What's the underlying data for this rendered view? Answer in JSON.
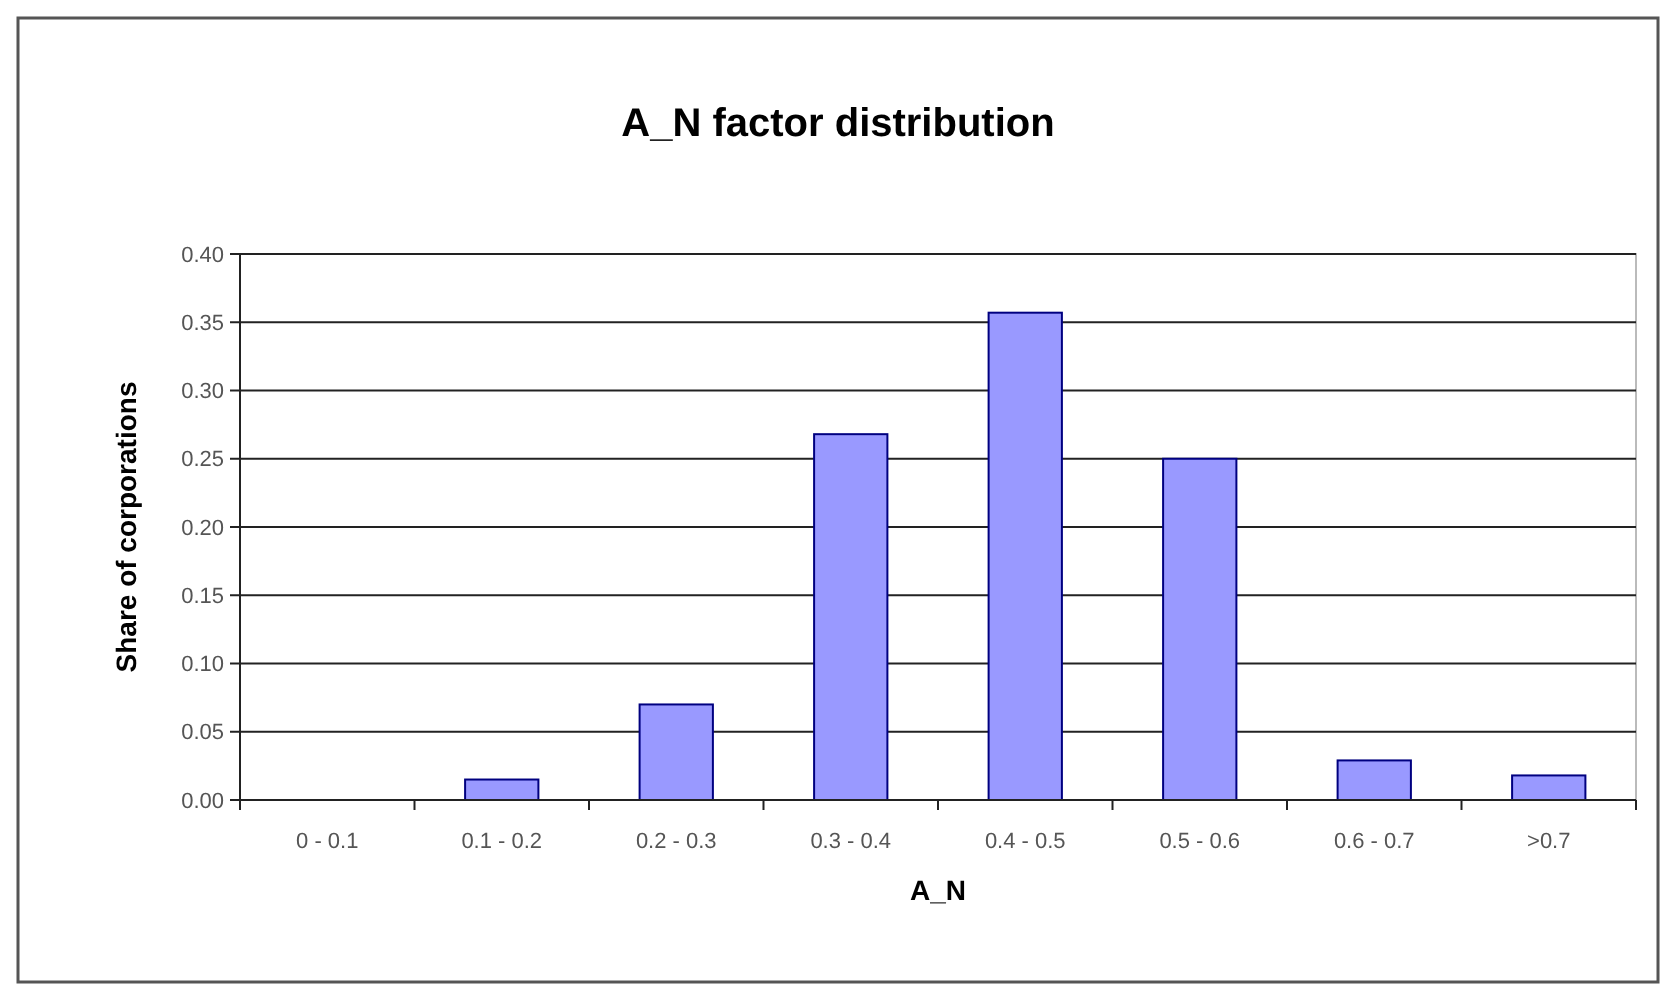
{
  "chart_data": {
    "type": "bar",
    "title": "A_N factor distribution",
    "xlabel": "A_N",
    "ylabel": "Share of corporations",
    "categories": [
      "0 - 0.1",
      "0.1 - 0.2",
      "0.2 - 0.3",
      "0.3 - 0.4",
      "0.4 - 0.5",
      "0.5 - 0.6",
      "0.6 - 0.7",
      ">0.7"
    ],
    "values": [
      0,
      0.015,
      0.07,
      0.268,
      0.357,
      0.25,
      0.029,
      0.018
    ],
    "color": "#9999ff",
    "ylim": [
      0,
      0.4
    ],
    "yticks": [
      {
        "value": 0,
        "label": "0.00"
      },
      {
        "value": 0.05,
        "label": "0.05"
      },
      {
        "value": 0.1,
        "label": "0.10"
      },
      {
        "value": 0.15,
        "label": "0.15"
      },
      {
        "value": 0.2,
        "label": "0.20"
      },
      {
        "value": 0.25,
        "label": "0.25"
      },
      {
        "value": 0.3,
        "label": "0.30"
      },
      {
        "value": 0.35,
        "label": "0.35"
      },
      {
        "value": 0.4,
        "label": "0.40"
      }
    ],
    "grid": "y"
  }
}
